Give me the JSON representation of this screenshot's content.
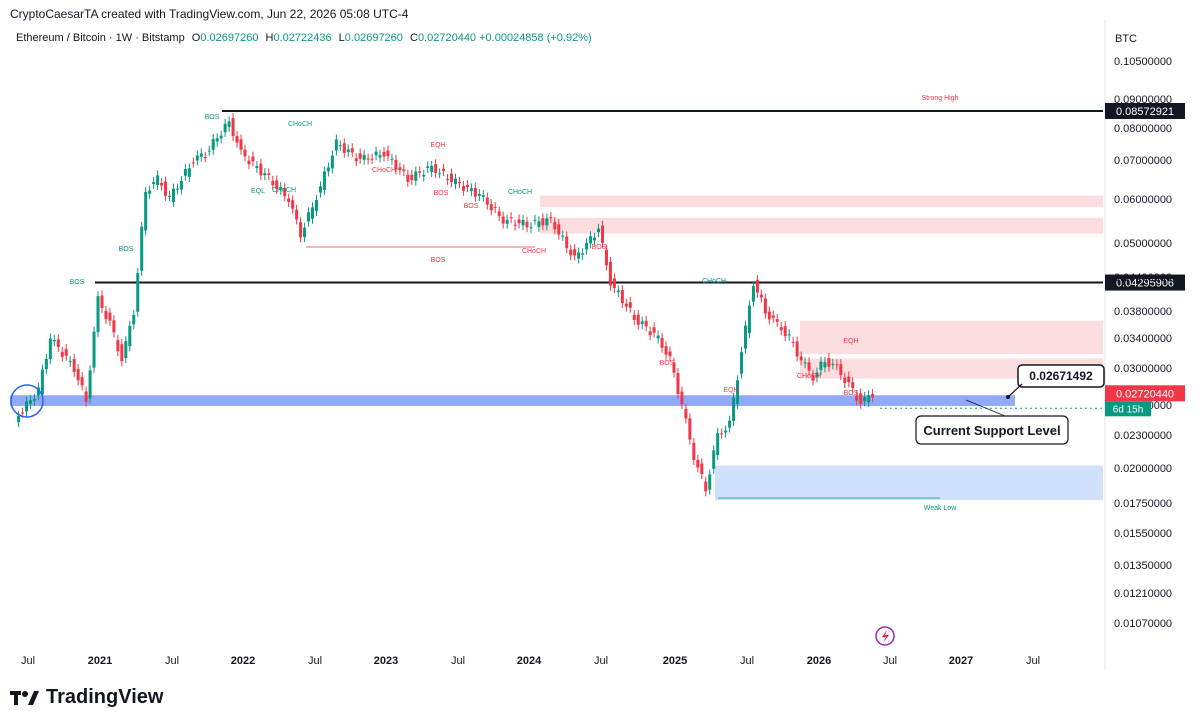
{
  "header": {
    "attribution": "CryptoCaesarTA created with TradingView.com, Jun 22, 2026 05:08 UTC-4"
  },
  "legend": {
    "symbol": "Ethereum / Bitcoin · 1W · Bitstamp",
    "o_label": "O",
    "o_value": "0.02697260",
    "h_label": "H",
    "h_value": "0.02722436",
    "l_label": "L",
    "l_value": "0.02697260",
    "c_label": "C",
    "c_value": "0.02720440",
    "change": "+0.00024858 (+0.92%)"
  },
  "footer": {
    "brand": "TradingView"
  },
  "chart_data": {
    "type": "candlestick",
    "currency_label": "BTC",
    "y_axis_ticks": [
      "0.10500000",
      "0.09000000",
      "0.08000000",
      "0.07000000",
      "0.06000000",
      "0.05000000",
      "0.04400000",
      "0.03800000",
      "0.03400000",
      "0.03000000",
      "0.02600000",
      "0.02300000",
      "0.02000000",
      "0.01750000",
      "0.01550000",
      "0.01350000",
      "0.01210000",
      "0.01070000"
    ],
    "x_axis_ticks": [
      "Jul",
      "2021",
      "Jul",
      "2022",
      "Jul",
      "2023",
      "Jul",
      "2024",
      "Jul",
      "2025",
      "Jul",
      "2026",
      "Jul",
      "2027",
      "Jul"
    ],
    "price_path": [
      {
        "date": "2020-06",
        "value": 0.0245
      },
      {
        "date": "2020-08",
        "value": 0.0275
      },
      {
        "date": "2020-09",
        "value": 0.034
      },
      {
        "date": "2020-11",
        "value": 0.03
      },
      {
        "date": "2020-12",
        "value": 0.0265
      },
      {
        "date": "2021-01",
        "value": 0.04
      },
      {
        "date": "2021-02",
        "value": 0.036
      },
      {
        "date": "2021-03",
        "value": 0.031
      },
      {
        "date": "2021-04",
        "value": 0.038
      },
      {
        "date": "2021-05",
        "value": 0.062
      },
      {
        "date": "2021-06",
        "value": 0.065
      },
      {
        "date": "2021-07",
        "value": 0.06
      },
      {
        "date": "2021-09",
        "value": 0.07
      },
      {
        "date": "2021-10",
        "value": 0.072
      },
      {
        "date": "2021-12",
        "value": 0.082
      },
      {
        "date": "2022-01",
        "value": 0.072
      },
      {
        "date": "2022-03",
        "value": 0.066
      },
      {
        "date": "2022-05",
        "value": 0.06
      },
      {
        "date": "2022-06",
        "value": 0.052
      },
      {
        "date": "2022-07",
        "value": 0.058
      },
      {
        "date": "2022-09",
        "value": 0.075
      },
      {
        "date": "2022-11",
        "value": 0.07
      },
      {
        "date": "2023-01",
        "value": 0.072
      },
      {
        "date": "2023-03",
        "value": 0.065
      },
      {
        "date": "2023-05",
        "value": 0.068
      },
      {
        "date": "2023-07",
        "value": 0.064
      },
      {
        "date": "2023-09",
        "value": 0.061
      },
      {
        "date": "2023-11",
        "value": 0.055
      },
      {
        "date": "2024-01",
        "value": 0.054
      },
      {
        "date": "2024-03",
        "value": 0.055
      },
      {
        "date": "2024-05",
        "value": 0.047
      },
      {
        "date": "2024-07",
        "value": 0.053
      },
      {
        "date": "2024-08",
        "value": 0.043
      },
      {
        "date": "2024-10",
        "value": 0.037
      },
      {
        "date": "2024-12",
        "value": 0.034
      },
      {
        "date": "2025-01",
        "value": 0.031
      },
      {
        "date": "2025-02",
        "value": 0.026
      },
      {
        "date": "2025-03",
        "value": 0.021
      },
      {
        "date": "2025-04",
        "value": 0.0185
      },
      {
        "date": "2025-05",
        "value": 0.023
      },
      {
        "date": "2025-06",
        "value": 0.024
      },
      {
        "date": "2025-07",
        "value": 0.032
      },
      {
        "date": "2025-08",
        "value": 0.043
      },
      {
        "date": "2025-09",
        "value": 0.038
      },
      {
        "date": "2025-10",
        "value": 0.036
      },
      {
        "date": "2025-11",
        "value": 0.034
      },
      {
        "date": "2025-12",
        "value": 0.031
      },
      {
        "date": "2026-01",
        "value": 0.029
      },
      {
        "date": "2026-02",
        "value": 0.031
      },
      {
        "date": "2026-03",
        "value": 0.03
      },
      {
        "date": "2026-04",
        "value": 0.028
      },
      {
        "date": "2026-05",
        "value": 0.0262
      },
      {
        "date": "2026-06",
        "value": 0.0272
      }
    ],
    "horizontal_levels": [
      {
        "value": 0.08572921,
        "label": "0.08572921"
      },
      {
        "value": 0.04295906,
        "label": "0.04295906"
      }
    ],
    "current_price": {
      "value": 0.0272044,
      "label": "0.02720440",
      "countdown": "6d 15h"
    },
    "support_callout": {
      "value": 0.02671492,
      "label": "0.02671492",
      "text": "Current Support Level"
    },
    "annotations": [
      "BOS",
      "BOS",
      "BOS",
      "CHoCH",
      "EQL",
      "CHoCH",
      "BOS",
      "CHoCH",
      "EQH",
      "BOS",
      "BOS",
      "CHoCH",
      "CHoCH",
      "BOS",
      "CHoCH",
      "EQH",
      "BOS",
      "EQH",
      "CHoCH",
      "BOS",
      "Strong High",
      "Weak Low"
    ],
    "zones": [
      {
        "type": "supply",
        "from": 0.058,
        "to": 0.0608
      },
      {
        "type": "supply",
        "from": 0.052,
        "to": 0.0555
      },
      {
        "type": "supply",
        "from": 0.0318,
        "to": 0.0365
      },
      {
        "type": "supply",
        "from": 0.0288,
        "to": 0.0312
      },
      {
        "type": "support",
        "from": 0.0259,
        "to": 0.027
      },
      {
        "type": "demand",
        "from": 0.0177,
        "to": 0.0202
      }
    ],
    "colors": {
      "up": "#089981",
      "down": "#f23645",
      "support_zone": "#6b8cf5",
      "demand_zone": "#cfe0fb",
      "supply_zone": "#fbdde0",
      "label_red": "#f23645",
      "label_green": "#089981"
    }
  }
}
